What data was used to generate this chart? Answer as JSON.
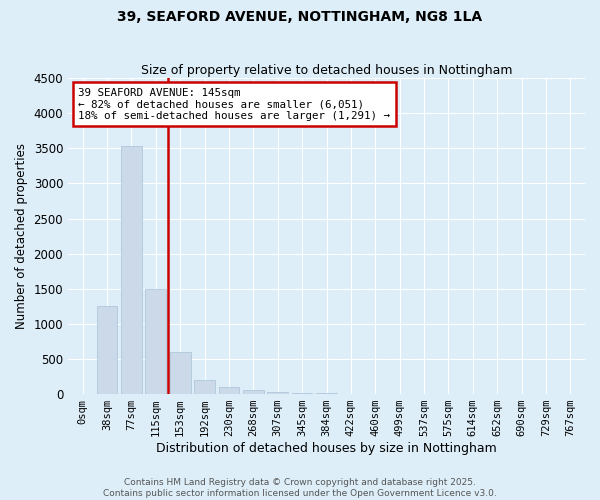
{
  "title1": "39, SEAFORD AVENUE, NOTTINGHAM, NG8 1LA",
  "title2": "Size of property relative to detached houses in Nottingham",
  "xlabel": "Distribution of detached houses by size in Nottingham",
  "ylabel": "Number of detached properties",
  "bar_color": "#ccd9e8",
  "bar_edge_color": "#b0c8dc",
  "vline_color": "#cc0000",
  "vline_x": 4,
  "categories": [
    "0sqm",
    "38sqm",
    "77sqm",
    "115sqm",
    "153sqm",
    "192sqm",
    "230sqm",
    "268sqm",
    "307sqm",
    "345sqm",
    "384sqm",
    "422sqm",
    "460sqm",
    "499sqm",
    "537sqm",
    "575sqm",
    "614sqm",
    "652sqm",
    "690sqm",
    "729sqm",
    "767sqm"
  ],
  "values": [
    0,
    1260,
    3540,
    1500,
    600,
    195,
    100,
    65,
    35,
    20,
    12,
    8,
    6,
    4,
    3,
    2,
    1,
    1,
    0,
    0,
    0
  ],
  "ylim": [
    0,
    4500
  ],
  "yticks": [
    0,
    500,
    1000,
    1500,
    2000,
    2500,
    3000,
    3500,
    4000,
    4500
  ],
  "annotation_line1": "39 SEAFORD AVENUE: 145sqm",
  "annotation_line2": "← 82% of detached houses are smaller (6,051)",
  "annotation_line3": "18% of semi-detached houses are larger (1,291) →",
  "bg_color": "#ddeef8",
  "grid_color": "#ffffff",
  "footer1": "Contains HM Land Registry data © Crown copyright and database right 2025.",
  "footer2": "Contains public sector information licensed under the Open Government Licence v3.0."
}
